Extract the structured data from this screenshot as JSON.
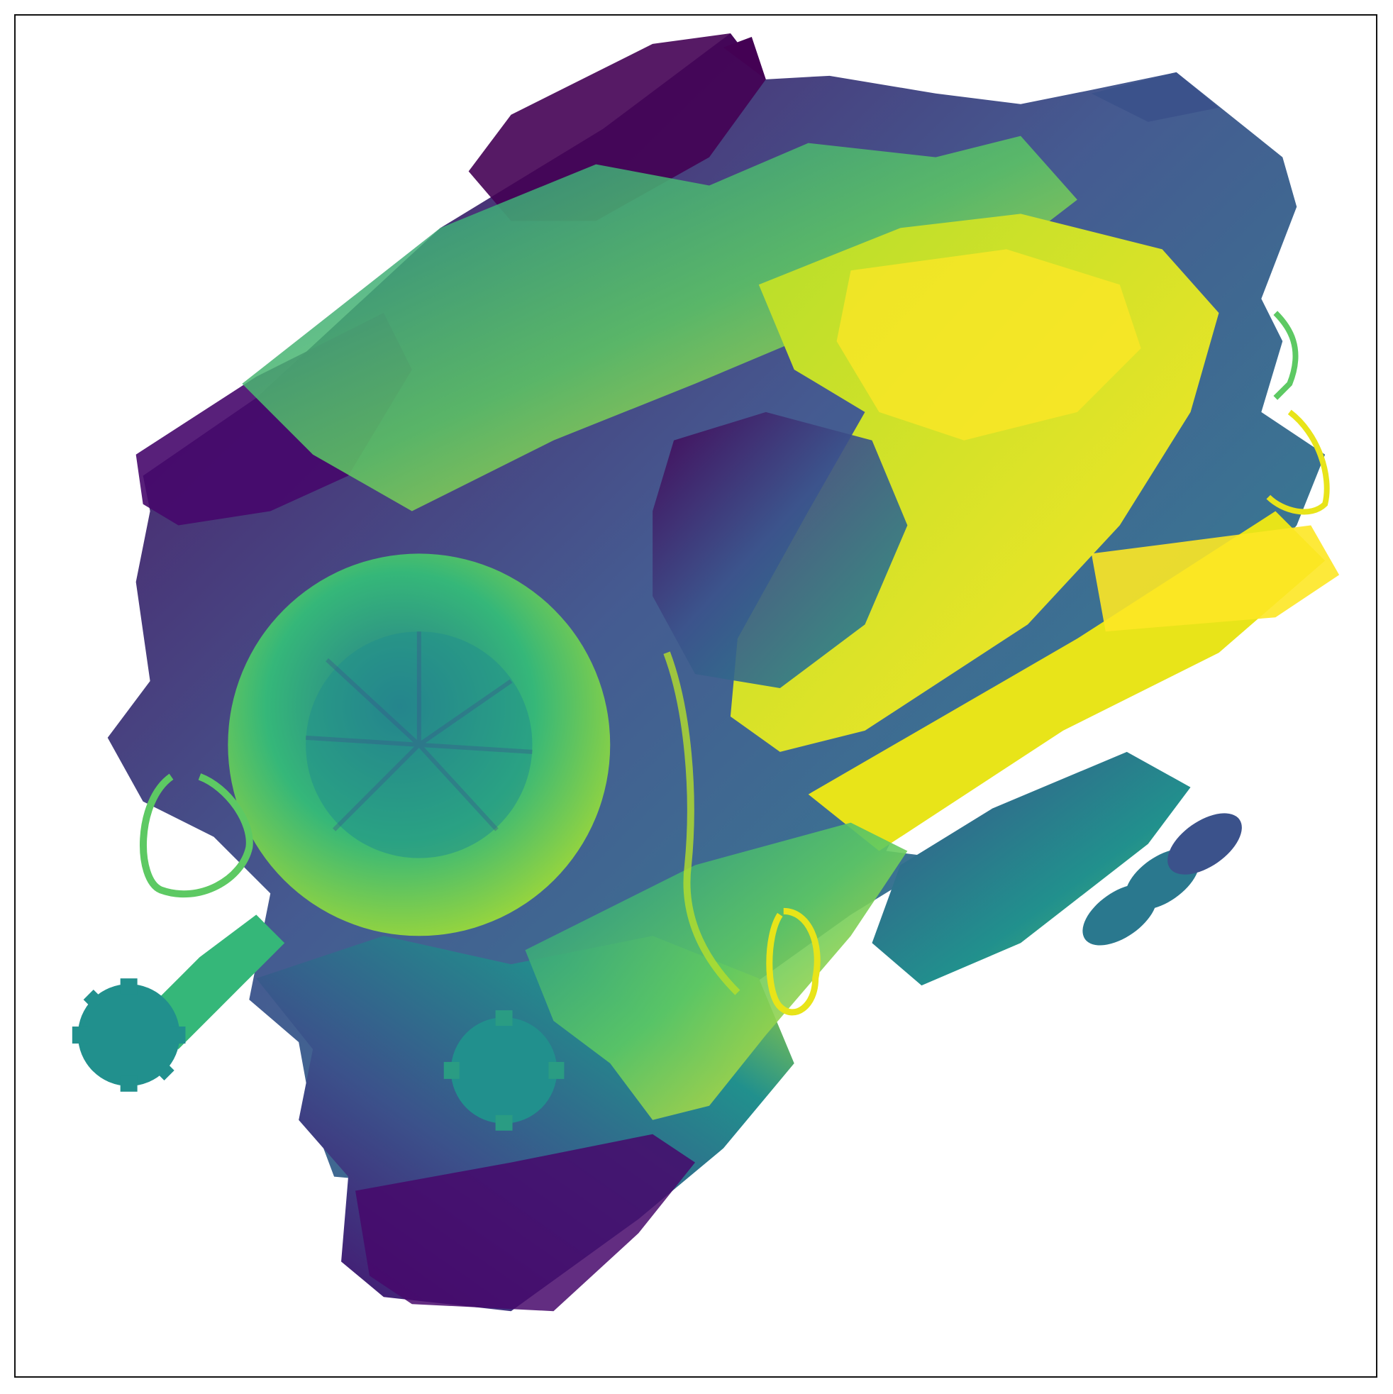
{
  "figure": {
    "kind": "depth-map",
    "subject_icon": "engine-depth-render",
    "colormap": "viridis",
    "colormap_stops": [
      "#440154",
      "#3b528b",
      "#21908d",
      "#5dc963",
      "#fde725"
    ],
    "background_color": "#ffffff",
    "frame_color": "#111111",
    "axis_ticks_visible": false,
    "axis_labels_visible": false
  }
}
